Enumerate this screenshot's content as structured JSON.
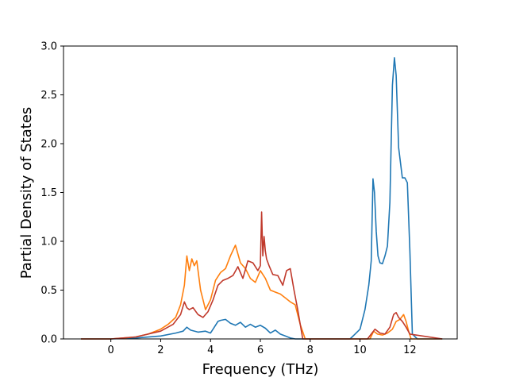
{
  "chart_data": {
    "type": "line",
    "xlabel": "Frequency (THz)",
    "ylabel": "Partial Density of States",
    "xlim": [
      -1.9,
      13.9
    ],
    "ylim": [
      0.0,
      3.0
    ],
    "xticks": [
      0,
      2,
      4,
      6,
      8,
      10,
      12
    ],
    "yticks": [
      0.0,
      0.5,
      1.0,
      1.5,
      2.0,
      2.5,
      3.0
    ],
    "ytick_labels": [
      "0.0",
      "0.5",
      "1.0",
      "1.5",
      "2.0",
      "2.5",
      "3.0"
    ],
    "grid": false,
    "legend": "none",
    "series": [
      {
        "color": "#1f77b4",
        "x": [
          -1.2,
          0,
          1,
          2,
          2.6,
          2.9,
          3.05,
          3.2,
          3.5,
          3.8,
          4.0,
          4.1,
          4.3,
          4.4,
          4.6,
          4.8,
          5.0,
          5.2,
          5.4,
          5.6,
          5.8,
          6.0,
          6.2,
          6.4,
          6.6,
          6.8,
          7.0,
          7.2,
          7.4,
          7.6,
          9.6,
          9.8,
          10.0,
          10.2,
          10.35,
          10.45,
          10.52,
          10.58,
          10.65,
          10.72,
          10.8,
          10.9,
          11.0,
          11.1,
          11.2,
          11.3,
          11.38,
          11.45,
          11.55,
          11.7,
          11.8,
          11.9,
          12.0,
          12.1,
          12.3,
          13.3
        ],
        "y": [
          0,
          0,
          0.01,
          0.03,
          0.06,
          0.08,
          0.12,
          0.09,
          0.07,
          0.08,
          0.06,
          0.1,
          0.18,
          0.19,
          0.2,
          0.16,
          0.14,
          0.17,
          0.12,
          0.15,
          0.12,
          0.14,
          0.11,
          0.06,
          0.09,
          0.05,
          0.03,
          0.01,
          0.0,
          0.0,
          0.0,
          0.05,
          0.1,
          0.3,
          0.55,
          0.8,
          1.64,
          1.5,
          1.1,
          0.85,
          0.78,
          0.77,
          0.85,
          0.95,
          1.4,
          2.6,
          2.88,
          2.7,
          1.96,
          1.65,
          1.65,
          1.6,
          0.9,
          0.05,
          0,
          0
        ]
      },
      {
        "color": "#ff7f0e",
        "x": [
          -1.2,
          0,
          1,
          1.5,
          2,
          2.3,
          2.6,
          2.8,
          2.95,
          3.05,
          3.15,
          3.25,
          3.35,
          3.45,
          3.6,
          3.8,
          4.0,
          4.2,
          4.4,
          4.6,
          4.8,
          5.0,
          5.2,
          5.4,
          5.6,
          5.8,
          6.0,
          6.2,
          6.4,
          6.6,
          6.8,
          7.0,
          7.2,
          7.4,
          7.6,
          7.8,
          10.4,
          10.55,
          10.7,
          10.9,
          11.1,
          11.3,
          11.45,
          11.6,
          11.75,
          11.85,
          11.95,
          12.05,
          13.3
        ],
        "y": [
          0,
          0,
          0.02,
          0.05,
          0.1,
          0.15,
          0.22,
          0.35,
          0.55,
          0.85,
          0.7,
          0.82,
          0.75,
          0.8,
          0.5,
          0.3,
          0.4,
          0.6,
          0.68,
          0.72,
          0.85,
          0.96,
          0.78,
          0.72,
          0.62,
          0.58,
          0.7,
          0.62,
          0.5,
          0.48,
          0.46,
          0.42,
          0.38,
          0.35,
          0.15,
          0.0,
          0.0,
          0.08,
          0.05,
          0.04,
          0.06,
          0.1,
          0.18,
          0.2,
          0.25,
          0.18,
          0.08,
          0.0,
          0
        ]
      },
      {
        "color": "#c0392b",
        "x": [
          -1.2,
          0,
          1,
          2,
          2.5,
          2.8,
          2.95,
          3.05,
          3.15,
          3.3,
          3.5,
          3.7,
          3.9,
          4.1,
          4.3,
          4.5,
          4.7,
          4.9,
          5.1,
          5.3,
          5.5,
          5.7,
          5.9,
          6.0,
          6.05,
          6.1,
          6.15,
          6.2,
          6.25,
          6.35,
          6.5,
          6.7,
          6.9,
          7.05,
          7.2,
          7.35,
          7.5,
          7.7,
          10.3,
          10.45,
          10.6,
          10.8,
          11.0,
          11.2,
          11.35,
          11.45,
          11.55,
          11.7,
          11.85,
          12.0,
          13.3
        ],
        "y": [
          0,
          0,
          0.02,
          0.08,
          0.15,
          0.25,
          0.38,
          0.32,
          0.3,
          0.32,
          0.25,
          0.22,
          0.28,
          0.4,
          0.55,
          0.6,
          0.62,
          0.65,
          0.74,
          0.62,
          0.8,
          0.78,
          0.7,
          0.75,
          1.3,
          0.85,
          1.05,
          0.9,
          0.82,
          0.75,
          0.66,
          0.65,
          0.55,
          0.7,
          0.72,
          0.5,
          0.3,
          0.0,
          0.0,
          0.05,
          0.1,
          0.06,
          0.05,
          0.12,
          0.25,
          0.27,
          0.22,
          0.18,
          0.12,
          0.05,
          0
        ]
      }
    ]
  }
}
